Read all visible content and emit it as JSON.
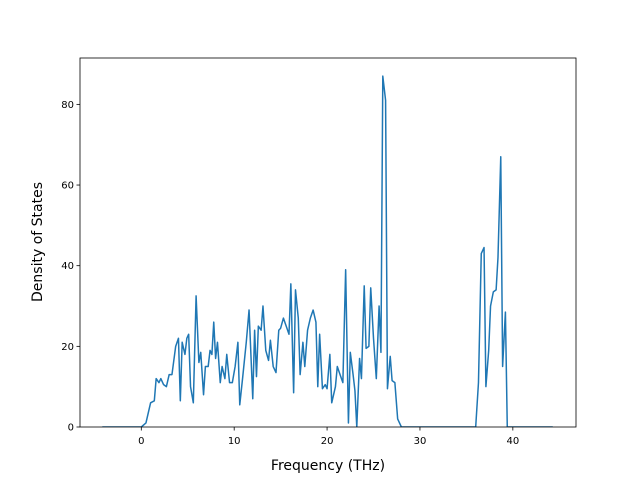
{
  "chart_data": {
    "type": "line",
    "x_label": "Frequency (THz)",
    "y_label": "Density of States",
    "color": "#1f77b4",
    "x": [
      -4.2,
      0,
      0.5,
      1,
      1.4,
      1.6,
      1.9,
      2.1,
      2.4,
      2.7,
      3,
      3.3,
      3.7,
      4.0,
      4.2,
      4.4,
      4.7,
      4.9,
      5.1,
      5.3,
      5.6,
      5.9,
      6.2,
      6.4,
      6.7,
      6.9,
      7.2,
      7.4,
      7.6,
      7.8,
      8.0,
      8.2,
      8.5,
      8.7,
      9.0,
      9.2,
      9.5,
      9.8,
      10.1,
      10.4,
      10.6,
      10.9,
      11.3,
      11.6,
      12.0,
      12.2,
      12.4,
      12.6,
      12.9,
      13.1,
      13.4,
      13.7,
      13.9,
      14.2,
      14.5,
      14.8,
      15.0,
      15.3,
      15.6,
      15.9,
      16.1,
      16.4,
      16.6,
      16.9,
      17.1,
      17.4,
      17.6,
      17.9,
      18.2,
      18.5,
      18.8,
      19.0,
      19.2,
      19.5,
      19.8,
      20.0,
      20.3,
      20.5,
      20.9,
      21.1,
      21.4,
      21.7,
      22.0,
      22.3,
      22.5,
      22.8,
      23.0,
      23.2,
      23.5,
      23.7,
      24.0,
      24.2,
      24.5,
      24.7,
      25.0,
      25.3,
      25.6,
      25.8,
      26.0,
      26.3,
      26.5,
      26.8,
      27.0,
      27.3,
      27.6,
      28.0,
      36.0,
      36.3,
      36.6,
      36.9,
      37.1,
      37.4,
      37.6,
      37.9,
      38.2,
      38.4,
      38.7,
      38.9,
      39.2,
      39.4,
      44.3
    ],
    "values": [
      0,
      0,
      1,
      6,
      6.5,
      12,
      11,
      12,
      10.5,
      10,
      13,
      13,
      20,
      22,
      6.5,
      21,
      18,
      22,
      23,
      10,
      6,
      32.5,
      16,
      18.5,
      8,
      15,
      15,
      19,
      18,
      26,
      17,
      21,
      11,
      15,
      12,
      18,
      11,
      11,
      15,
      21,
      5.5,
      12,
      21,
      29,
      7,
      24,
      12.5,
      25,
      24,
      30,
      19,
      16.5,
      21.5,
      15,
      13.5,
      24,
      24.5,
      27,
      25,
      23,
      35.5,
      8.5,
      34,
      27,
      13,
      21,
      15,
      24,
      27,
      29,
      26,
      10,
      23,
      9.5,
      10.5,
      9.5,
      18,
      6,
      10,
      15,
      13,
      11,
      39,
      1,
      18.5,
      13,
      9,
      0,
      17,
      12,
      35,
      19.5,
      20,
      34.5,
      22,
      12,
      30,
      18.5,
      87,
      81,
      9.5,
      17.5,
      11.5,
      11,
      2,
      0,
      0,
      11,
      43,
      44.5,
      10,
      19,
      30,
      33.5,
      34,
      42,
      67,
      15,
      28.5,
      0,
      0
    ],
    "xlim": [
      -6.6,
      46.8
    ],
    "xticks": [
      0,
      10,
      20,
      30,
      40
    ],
    "ylim": [
      0,
      91.5
    ],
    "yticks": [
      0,
      20,
      40,
      60,
      80
    ]
  }
}
